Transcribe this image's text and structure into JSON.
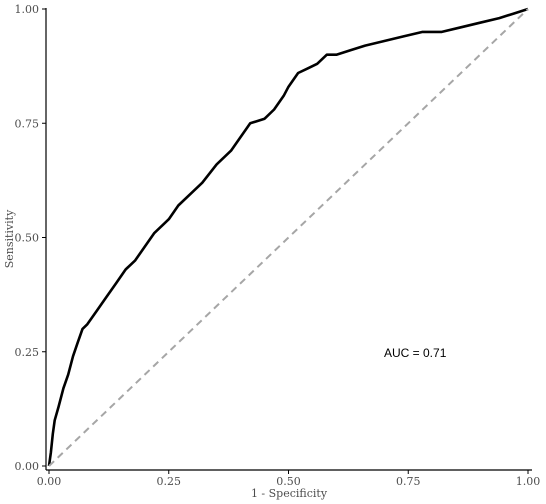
{
  "chart_data": {
    "type": "line",
    "xlabel": "1 - Specificity",
    "ylabel": "Sensitivity",
    "xlim": [
      0,
      1
    ],
    "ylim": [
      0,
      1
    ],
    "x_ticks": [
      "0.00",
      "0.25",
      "0.50",
      "0.75",
      "1.00"
    ],
    "y_ticks": [
      "0.00",
      "0.25",
      "0.50",
      "0.75",
      "1.00"
    ],
    "grid": false,
    "annotation": "AUC = 0.71",
    "series": [
      {
        "role": "roc-curve",
        "color": "#000000",
        "x": [
          0.0,
          0.004,
          0.008,
          0.012,
          0.02,
          0.03,
          0.04,
          0.05,
          0.06,
          0.07,
          0.08,
          0.1,
          0.12,
          0.14,
          0.16,
          0.18,
          0.2,
          0.22,
          0.24,
          0.25,
          0.27,
          0.3,
          0.32,
          0.35,
          0.38,
          0.4,
          0.42,
          0.45,
          0.47,
          0.49,
          0.5,
          0.52,
          0.54,
          0.56,
          0.58,
          0.6,
          0.63,
          0.66,
          0.7,
          0.74,
          0.78,
          0.82,
          0.86,
          0.9,
          0.94,
          0.97,
          1.0
        ],
        "y": [
          0.0,
          0.03,
          0.07,
          0.1,
          0.13,
          0.17,
          0.2,
          0.24,
          0.27,
          0.3,
          0.31,
          0.34,
          0.37,
          0.4,
          0.43,
          0.45,
          0.48,
          0.51,
          0.53,
          0.54,
          0.57,
          0.6,
          0.62,
          0.66,
          0.69,
          0.72,
          0.75,
          0.76,
          0.78,
          0.81,
          0.83,
          0.86,
          0.87,
          0.88,
          0.9,
          0.9,
          0.91,
          0.92,
          0.93,
          0.94,
          0.95,
          0.95,
          0.96,
          0.97,
          0.98,
          0.99,
          1.0
        ]
      },
      {
        "role": "reference-diagonal",
        "color": "#a6a6a6",
        "dashed": true,
        "x": [
          0,
          1
        ],
        "y": [
          0,
          1
        ]
      }
    ]
  }
}
